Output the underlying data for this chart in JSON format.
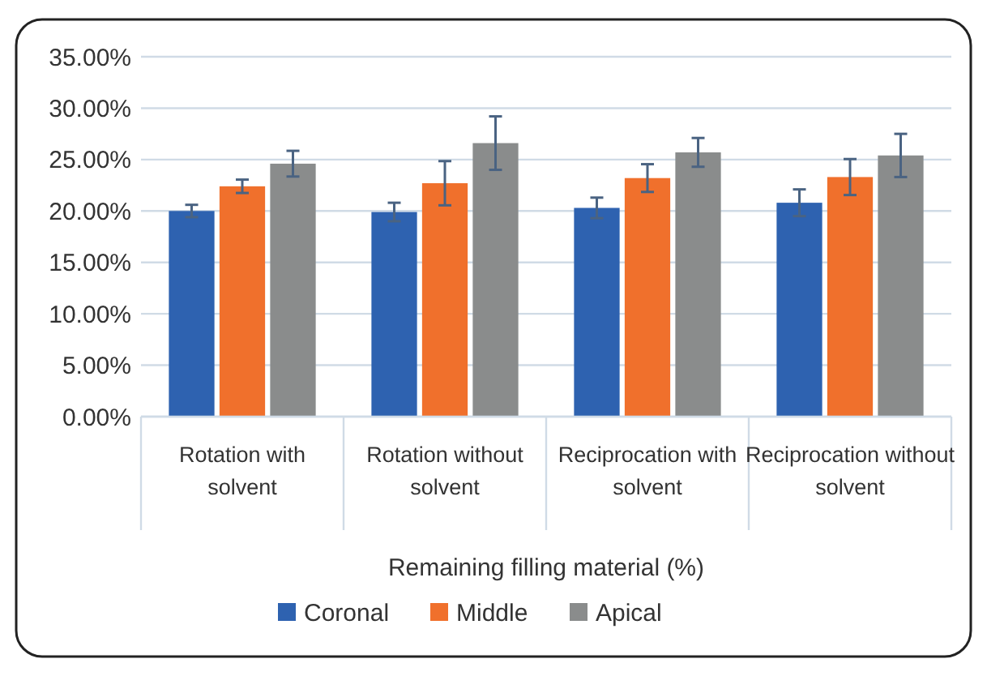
{
  "chart_data": {
    "type": "bar",
    "xlabel": "Remaining filling material (%)",
    "categories": [
      "Rotation with solvent",
      "Rotation without solvent",
      "Reciprocation with solvent",
      "Reciprocation without solvent"
    ],
    "series": [
      {
        "name": "Coronal",
        "color": "#2e62b0",
        "values": [
          20.0,
          19.9,
          20.3,
          20.8
        ],
        "errors": [
          0.6,
          0.9,
          1.0,
          1.3
        ]
      },
      {
        "name": "Middle",
        "color": "#f0702c",
        "values": [
          22.4,
          22.7,
          23.2,
          23.3
        ],
        "errors": [
          0.65,
          2.15,
          1.35,
          1.75
        ]
      },
      {
        "name": "Apical",
        "color": "#8a8c8c",
        "values": [
          24.6,
          26.6,
          25.7,
          25.4
        ],
        "errors": [
          1.25,
          2.6,
          1.4,
          2.1
        ]
      }
    ],
    "ylim": [
      0,
      35
    ],
    "yticks": [
      {
        "value": 0,
        "label": "0.00%"
      },
      {
        "value": 5,
        "label": "5.00%"
      },
      {
        "value": 10,
        "label": "10.00%"
      },
      {
        "value": 15,
        "label": "15.00%"
      },
      {
        "value": 20,
        "label": "20.00%"
      },
      {
        "value": 25,
        "label": "25.00%"
      },
      {
        "value": 30,
        "label": "30.00%"
      },
      {
        "value": 35,
        "label": "35.00%"
      }
    ],
    "grid": "y",
    "legend": "bottom"
  }
}
